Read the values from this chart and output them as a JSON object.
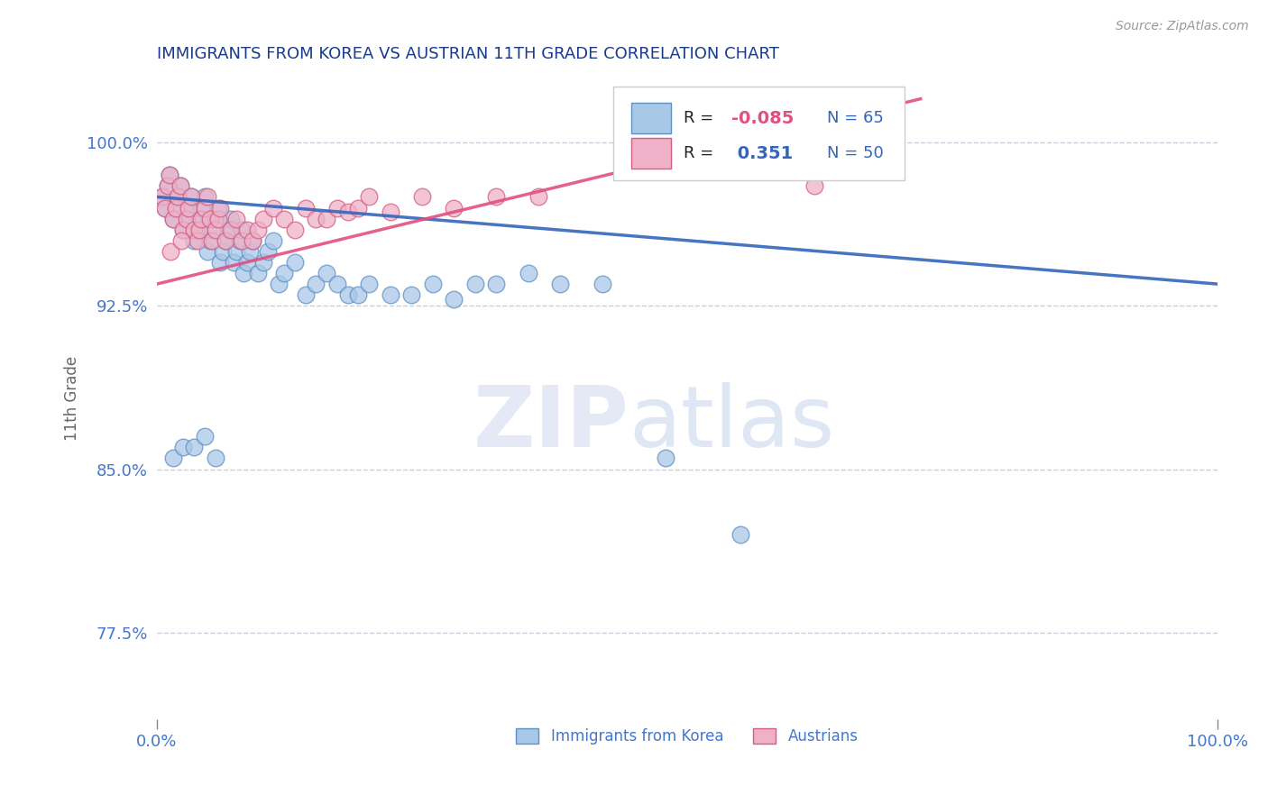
{
  "title": "IMMIGRANTS FROM KOREA VS AUSTRIAN 11TH GRADE CORRELATION CHART",
  "source_text": "Source: ZipAtlas.com",
  "ylabel": "11th Grade",
  "watermark_zip": "ZIP",
  "watermark_atlas": "atlas",
  "xlim": [
    0.0,
    1.0
  ],
  "ylim": [
    0.735,
    1.03
  ],
  "yticks": [
    0.775,
    0.85,
    0.925,
    1.0
  ],
  "ytick_labels": [
    "77.5%",
    "85.0%",
    "92.5%",
    "100.0%"
  ],
  "xtick_labels": [
    "0.0%",
    "100.0%"
  ],
  "xticks": [
    0.0,
    1.0
  ],
  "blue_color": "#A8C8E8",
  "pink_color": "#F0B0C8",
  "blue_edge_color": "#6090C0",
  "pink_edge_color": "#D06080",
  "blue_line_color": "#3366BB",
  "pink_line_color": "#E05080",
  "title_color": "#1A3A8A",
  "axis_color": "#4477CC",
  "source_color": "#999999",
  "grid_color": "#CCCCDD",
  "r1_value_color": "#E05080",
  "r2_value_color": "#3366BB",
  "legend_text_color": "#3366BB",
  "blue_trend_x0": 0.0,
  "blue_trend_x1": 1.0,
  "blue_trend_y0": 0.975,
  "blue_trend_y1": 0.935,
  "pink_trend_x0": 0.0,
  "pink_trend_x1": 0.72,
  "pink_trend_y0": 0.935,
  "pink_trend_y1": 1.02,
  "blue_scatter_x": [
    0.005,
    0.008,
    0.01,
    0.012,
    0.015,
    0.018,
    0.02,
    0.022,
    0.025,
    0.028,
    0.03,
    0.032,
    0.035,
    0.038,
    0.04,
    0.042,
    0.045,
    0.048,
    0.05,
    0.052,
    0.055,
    0.058,
    0.06,
    0.062,
    0.065,
    0.068,
    0.07,
    0.072,
    0.075,
    0.078,
    0.08,
    0.082,
    0.085,
    0.088,
    0.09,
    0.095,
    0.1,
    0.105,
    0.11,
    0.115,
    0.12,
    0.13,
    0.14,
    0.15,
    0.16,
    0.17,
    0.18,
    0.19,
    0.2,
    0.22,
    0.24,
    0.26,
    0.28,
    0.3,
    0.32,
    0.35,
    0.38,
    0.42,
    0.48,
    0.55,
    0.015,
    0.025,
    0.035,
    0.045,
    0.055
  ],
  "blue_scatter_y": [
    0.975,
    0.97,
    0.98,
    0.985,
    0.965,
    0.97,
    0.975,
    0.98,
    0.96,
    0.965,
    0.97,
    0.975,
    0.955,
    0.96,
    0.965,
    0.97,
    0.975,
    0.95,
    0.955,
    0.96,
    0.965,
    0.97,
    0.945,
    0.95,
    0.955,
    0.96,
    0.965,
    0.945,
    0.95,
    0.955,
    0.96,
    0.94,
    0.945,
    0.95,
    0.955,
    0.94,
    0.945,
    0.95,
    0.955,
    0.935,
    0.94,
    0.945,
    0.93,
    0.935,
    0.94,
    0.935,
    0.93,
    0.93,
    0.935,
    0.93,
    0.93,
    0.935,
    0.928,
    0.935,
    0.935,
    0.94,
    0.935,
    0.935,
    0.855,
    0.82,
    0.855,
    0.86,
    0.86,
    0.865,
    0.855
  ],
  "pink_scatter_x": [
    0.005,
    0.008,
    0.01,
    0.012,
    0.015,
    0.018,
    0.02,
    0.022,
    0.025,
    0.028,
    0.03,
    0.032,
    0.035,
    0.038,
    0.04,
    0.042,
    0.045,
    0.048,
    0.05,
    0.052,
    0.055,
    0.058,
    0.06,
    0.065,
    0.07,
    0.075,
    0.08,
    0.085,
    0.09,
    0.095,
    0.1,
    0.11,
    0.12,
    0.13,
    0.14,
    0.15,
    0.16,
    0.17,
    0.18,
    0.19,
    0.2,
    0.22,
    0.25,
    0.28,
    0.32,
    0.36,
    0.5,
    0.62,
    0.013,
    0.023
  ],
  "pink_scatter_y": [
    0.975,
    0.97,
    0.98,
    0.985,
    0.965,
    0.97,
    0.975,
    0.98,
    0.96,
    0.965,
    0.97,
    0.975,
    0.96,
    0.955,
    0.96,
    0.965,
    0.97,
    0.975,
    0.965,
    0.955,
    0.96,
    0.965,
    0.97,
    0.955,
    0.96,
    0.965,
    0.955,
    0.96,
    0.955,
    0.96,
    0.965,
    0.97,
    0.965,
    0.96,
    0.97,
    0.965,
    0.965,
    0.97,
    0.968,
    0.97,
    0.975,
    0.968,
    0.975,
    0.97,
    0.975,
    0.975,
    0.99,
    0.98,
    0.95,
    0.955
  ]
}
